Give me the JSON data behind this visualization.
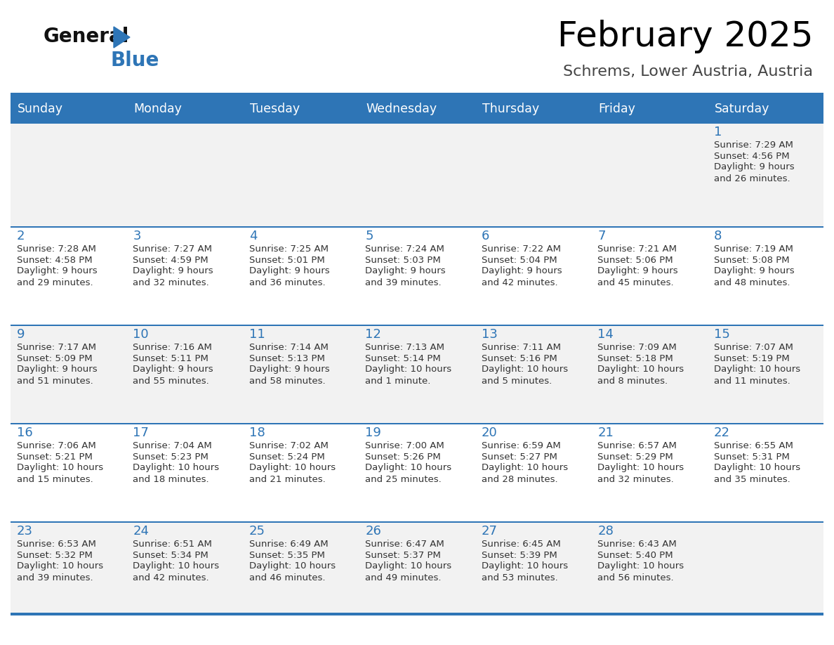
{
  "title": "February 2025",
  "subtitle": "Schrems, Lower Austria, Austria",
  "days_of_week": [
    "Sunday",
    "Monday",
    "Tuesday",
    "Wednesday",
    "Thursday",
    "Friday",
    "Saturday"
  ],
  "header_bg_color": "#2E75B6",
  "header_text_color": "#FFFFFF",
  "row_bg_color_odd": "#F2F2F2",
  "row_bg_color_even": "#FFFFFF",
  "border_color": "#2E75B6",
  "day_num_color": "#2E75B6",
  "cell_text_color": "#333333",
  "title_color": "#000000",
  "subtitle_color": "#444444",
  "logo_black_color": "#111111",
  "logo_triangle_color": "#2E75B6",
  "logo_blue_color": "#2E75B6",
  "calendar_data": [
    [
      null,
      null,
      null,
      null,
      null,
      null,
      1
    ],
    [
      2,
      3,
      4,
      5,
      6,
      7,
      8
    ],
    [
      9,
      10,
      11,
      12,
      13,
      14,
      15
    ],
    [
      16,
      17,
      18,
      19,
      20,
      21,
      22
    ],
    [
      23,
      24,
      25,
      26,
      27,
      28,
      null
    ]
  ],
  "day_info": {
    "1": {
      "sunrise": "7:29 AM",
      "sunset": "4:56 PM",
      "daylight_line1": "Daylight: 9 hours",
      "daylight_line2": "and 26 minutes."
    },
    "2": {
      "sunrise": "7:28 AM",
      "sunset": "4:58 PM",
      "daylight_line1": "Daylight: 9 hours",
      "daylight_line2": "and 29 minutes."
    },
    "3": {
      "sunrise": "7:27 AM",
      "sunset": "4:59 PM",
      "daylight_line1": "Daylight: 9 hours",
      "daylight_line2": "and 32 minutes."
    },
    "4": {
      "sunrise": "7:25 AM",
      "sunset": "5:01 PM",
      "daylight_line1": "Daylight: 9 hours",
      "daylight_line2": "and 36 minutes."
    },
    "5": {
      "sunrise": "7:24 AM",
      "sunset": "5:03 PM",
      "daylight_line1": "Daylight: 9 hours",
      "daylight_line2": "and 39 minutes."
    },
    "6": {
      "sunrise": "7:22 AM",
      "sunset": "5:04 PM",
      "daylight_line1": "Daylight: 9 hours",
      "daylight_line2": "and 42 minutes."
    },
    "7": {
      "sunrise": "7:21 AM",
      "sunset": "5:06 PM",
      "daylight_line1": "Daylight: 9 hours",
      "daylight_line2": "and 45 minutes."
    },
    "8": {
      "sunrise": "7:19 AM",
      "sunset": "5:08 PM",
      "daylight_line1": "Daylight: 9 hours",
      "daylight_line2": "and 48 minutes."
    },
    "9": {
      "sunrise": "7:17 AM",
      "sunset": "5:09 PM",
      "daylight_line1": "Daylight: 9 hours",
      "daylight_line2": "and 51 minutes."
    },
    "10": {
      "sunrise": "7:16 AM",
      "sunset": "5:11 PM",
      "daylight_line1": "Daylight: 9 hours",
      "daylight_line2": "and 55 minutes."
    },
    "11": {
      "sunrise": "7:14 AM",
      "sunset": "5:13 PM",
      "daylight_line1": "Daylight: 9 hours",
      "daylight_line2": "and 58 minutes."
    },
    "12": {
      "sunrise": "7:13 AM",
      "sunset": "5:14 PM",
      "daylight_line1": "Daylight: 10 hours",
      "daylight_line2": "and 1 minute."
    },
    "13": {
      "sunrise": "7:11 AM",
      "sunset": "5:16 PM",
      "daylight_line1": "Daylight: 10 hours",
      "daylight_line2": "and 5 minutes."
    },
    "14": {
      "sunrise": "7:09 AM",
      "sunset": "5:18 PM",
      "daylight_line1": "Daylight: 10 hours",
      "daylight_line2": "and 8 minutes."
    },
    "15": {
      "sunrise": "7:07 AM",
      "sunset": "5:19 PM",
      "daylight_line1": "Daylight: 10 hours",
      "daylight_line2": "and 11 minutes."
    },
    "16": {
      "sunrise": "7:06 AM",
      "sunset": "5:21 PM",
      "daylight_line1": "Daylight: 10 hours",
      "daylight_line2": "and 15 minutes."
    },
    "17": {
      "sunrise": "7:04 AM",
      "sunset": "5:23 PM",
      "daylight_line1": "Daylight: 10 hours",
      "daylight_line2": "and 18 minutes."
    },
    "18": {
      "sunrise": "7:02 AM",
      "sunset": "5:24 PM",
      "daylight_line1": "Daylight: 10 hours",
      "daylight_line2": "and 21 minutes."
    },
    "19": {
      "sunrise": "7:00 AM",
      "sunset": "5:26 PM",
      "daylight_line1": "Daylight: 10 hours",
      "daylight_line2": "and 25 minutes."
    },
    "20": {
      "sunrise": "6:59 AM",
      "sunset": "5:27 PM",
      "daylight_line1": "Daylight: 10 hours",
      "daylight_line2": "and 28 minutes."
    },
    "21": {
      "sunrise": "6:57 AM",
      "sunset": "5:29 PM",
      "daylight_line1": "Daylight: 10 hours",
      "daylight_line2": "and 32 minutes."
    },
    "22": {
      "sunrise": "6:55 AM",
      "sunset": "5:31 PM",
      "daylight_line1": "Daylight: 10 hours",
      "daylight_line2": "and 35 minutes."
    },
    "23": {
      "sunrise": "6:53 AM",
      "sunset": "5:32 PM",
      "daylight_line1": "Daylight: 10 hours",
      "daylight_line2": "and 39 minutes."
    },
    "24": {
      "sunrise": "6:51 AM",
      "sunset": "5:34 PM",
      "daylight_line1": "Daylight: 10 hours",
      "daylight_line2": "and 42 minutes."
    },
    "25": {
      "sunrise": "6:49 AM",
      "sunset": "5:35 PM",
      "daylight_line1": "Daylight: 10 hours",
      "daylight_line2": "and 46 minutes."
    },
    "26": {
      "sunrise": "6:47 AM",
      "sunset": "5:37 PM",
      "daylight_line1": "Daylight: 10 hours",
      "daylight_line2": "and 49 minutes."
    },
    "27": {
      "sunrise": "6:45 AM",
      "sunset": "5:39 PM",
      "daylight_line1": "Daylight: 10 hours",
      "daylight_line2": "and 53 minutes."
    },
    "28": {
      "sunrise": "6:43 AM",
      "sunset": "5:40 PM",
      "daylight_line1": "Daylight: 10 hours",
      "daylight_line2": "and 56 minutes."
    }
  }
}
